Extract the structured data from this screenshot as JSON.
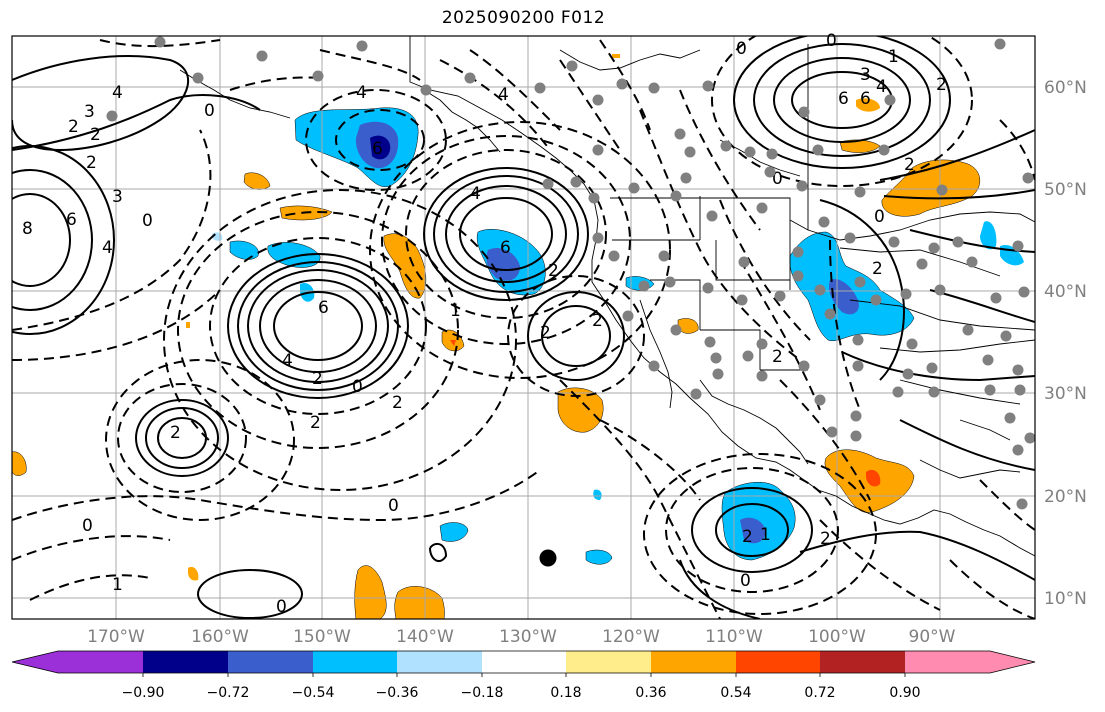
{
  "title": "2025090200 F012",
  "longitude_labels": [
    "170°W",
    "160°W",
    "150°W",
    "140°W",
    "130°W",
    "120°W",
    "110°W",
    "100°W",
    "90°W"
  ],
  "latitude_labels": [
    "60°N",
    "50°N",
    "40°N",
    "30°N",
    "20°N",
    "10°N"
  ],
  "colorbar": {
    "tick_labels": [
      "−0.90",
      "−0.72",
      "−0.54",
      "−0.36",
      "−0.18",
      "0.18",
      "0.36",
      "0.54",
      "0.72",
      "0.90"
    ],
    "colors": [
      "#9b30d9",
      "#00008b",
      "#3a5fcd",
      "#00bfff",
      "#b0e2ff",
      "#ffffff",
      "#ffec8b",
      "#ffa500",
      "#ff4500",
      "#b22222",
      "#ff8cb0"
    ]
  },
  "contour_labels": [
    "4",
    "3",
    "2",
    "2",
    "2",
    "6",
    "8",
    "4",
    "3",
    "0",
    "0",
    "4",
    "6",
    "4",
    "6",
    "2",
    "6",
    "4",
    "2",
    "0",
    "2",
    "2",
    "2",
    "2",
    "0",
    "0",
    "0",
    "0",
    "1",
    "2",
    "6",
    "4",
    "3",
    "2",
    "2",
    "0",
    "0",
    "2",
    "2",
    "2",
    "1",
    "4",
    "6",
    "0",
    "2",
    "0",
    "1",
    "1"
  ]
}
